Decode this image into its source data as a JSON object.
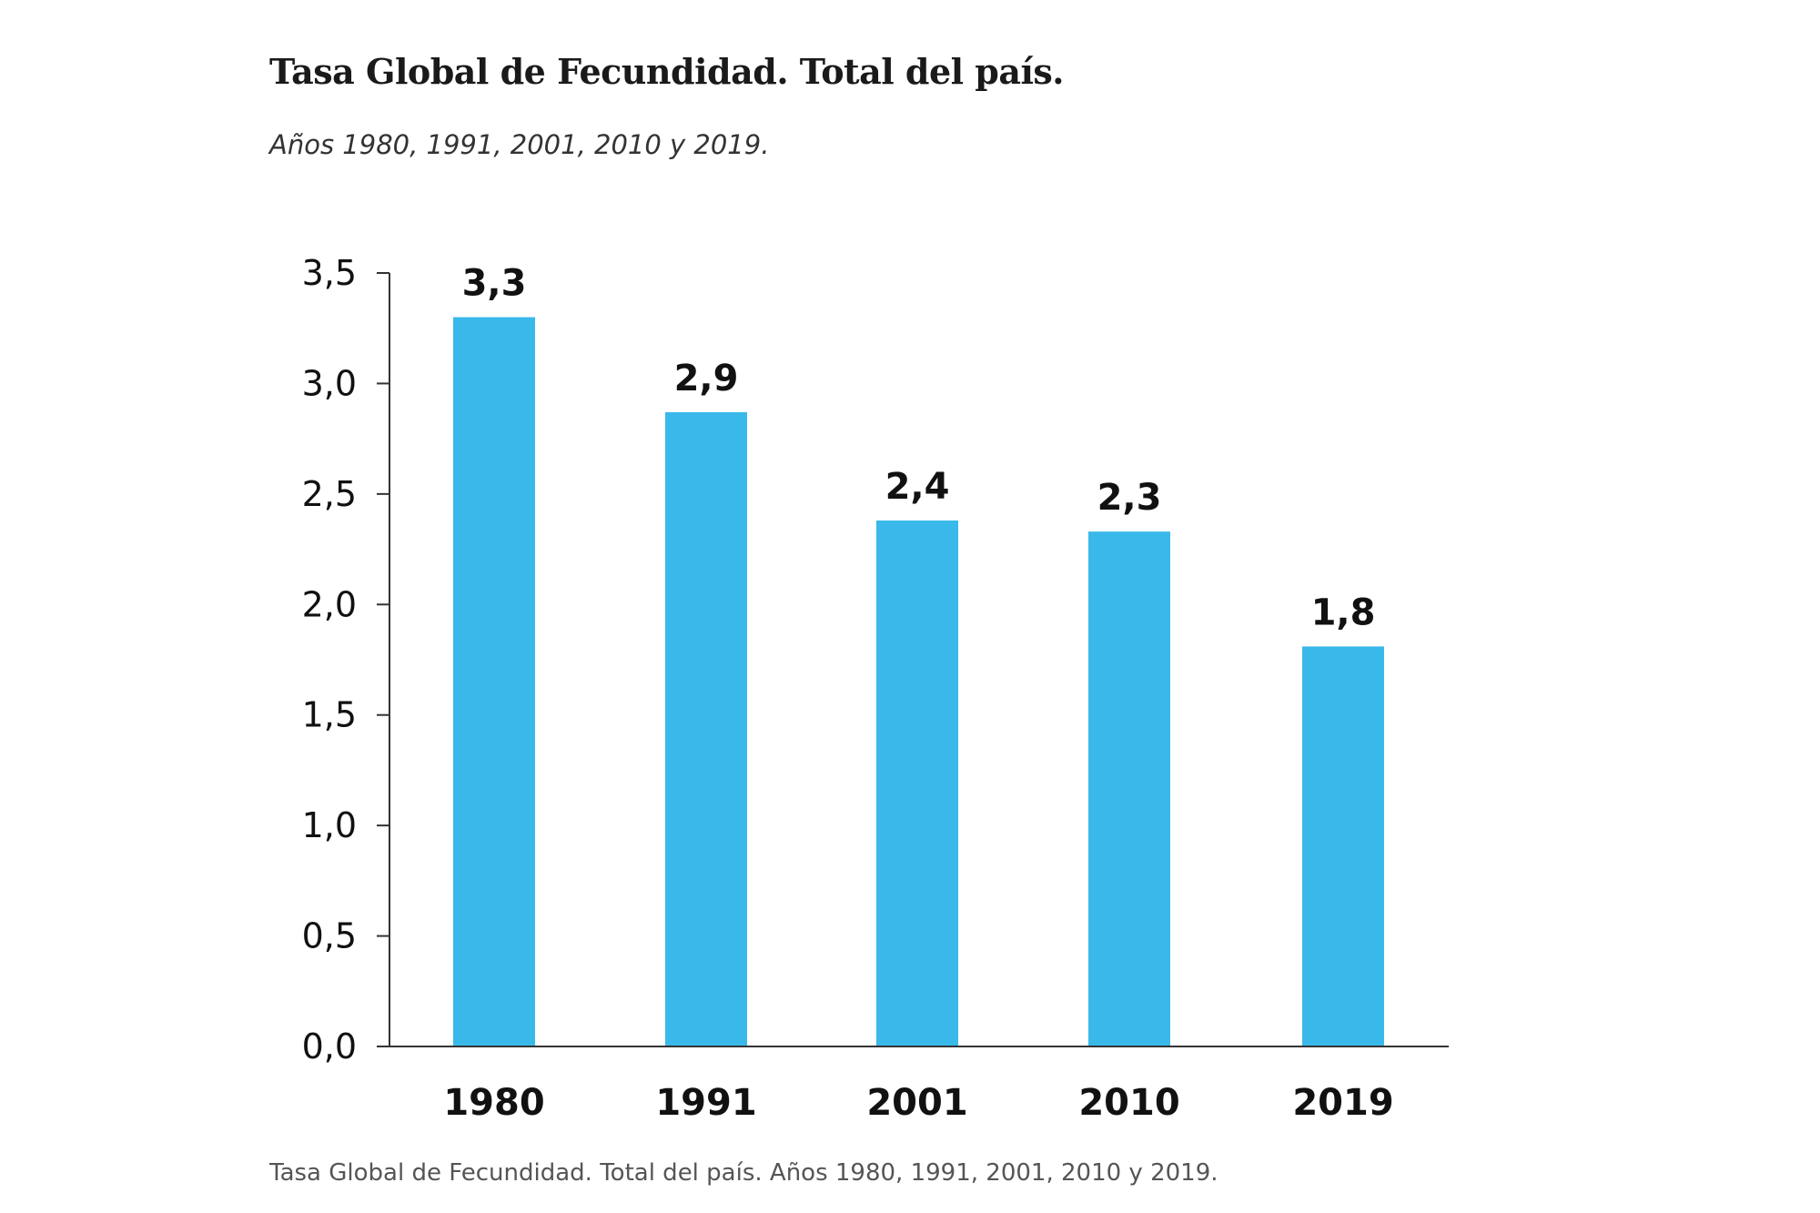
{
  "chart_data": {
    "type": "bar",
    "title": "Tasa Global de Fecundidad. Total del país.",
    "subtitle": "Años 1980, 1991, 2001, 2010 y 2019.",
    "caption": "Tasa Global de Fecundidad. Total del país. Años 1980, 1991, 2001, 2010 y 2019.",
    "categories": [
      "1980",
      "1991",
      "2001",
      "2010",
      "2019"
    ],
    "values": [
      3.3,
      2.87,
      2.38,
      2.33,
      1.81
    ],
    "value_labels": [
      "3,3",
      "2,9",
      "2,4",
      "2,3",
      "1,8"
    ],
    "xlabel": "",
    "ylabel": "",
    "ylim": [
      0,
      3.5
    ],
    "yticks": [
      0,
      0.5,
      1.0,
      1.5,
      2.0,
      2.5,
      3.0,
      3.5
    ],
    "ytick_labels": [
      "0,0",
      "0,5",
      "1,0",
      "1,5",
      "2,0",
      "2,5",
      "3,0",
      "3,5"
    ],
    "grid": false,
    "legend": "none",
    "bar_color": "#39b9ea",
    "axis_color": "#333333"
  }
}
